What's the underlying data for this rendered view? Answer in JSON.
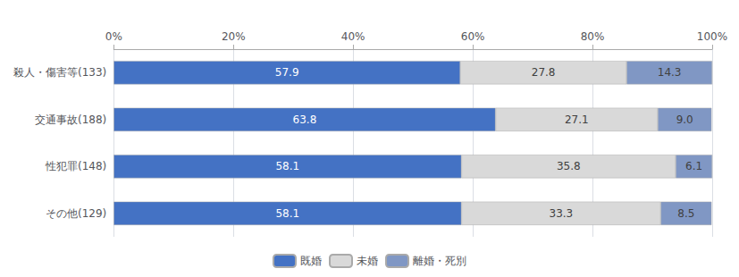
{
  "chart_data": {
    "type": "bar",
    "orientation": "horizontal",
    "stacked": true,
    "data_labels": true,
    "categories": [
      "殺人・傷害等(133)",
      "交通事故(188)",
      "性犯罪(148)",
      "その他(129)"
    ],
    "series": [
      {
        "name": "既婚",
        "color": "#4472C4",
        "values": [
          57.9,
          63.8,
          58.1,
          58.1
        ]
      },
      {
        "name": "未婚",
        "color": "#D9D9D9",
        "values": [
          27.8,
          27.1,
          35.8,
          33.3
        ]
      },
      {
        "name": "離婚・死別",
        "color": "#8097C4",
        "values": [
          14.3,
          9.0,
          6.1,
          8.5
        ],
        "value_labels": [
          "14.3",
          "9.0",
          "6.1",
          "8.5"
        ]
      }
    ],
    "xlim": [
      0,
      100
    ],
    "xticks": [
      {
        "value": 0,
        "label": "0%"
      },
      {
        "value": 20,
        "label": "20%"
      },
      {
        "value": 40,
        "label": "40%"
      },
      {
        "value": 60,
        "label": "60%"
      },
      {
        "value": 80,
        "label": "80%"
      },
      {
        "value": 100,
        "label": "100%"
      }
    ],
    "grid": true,
    "legend": "bottom"
  }
}
